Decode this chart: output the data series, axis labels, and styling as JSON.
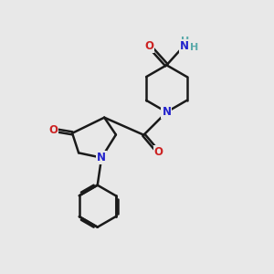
{
  "bg_color": "#e8e8e8",
  "bond_color": "#1a1a1a",
  "N_color": "#2222cc",
  "O_color": "#cc2222",
  "H_color": "#5aaaaa",
  "line_width": 1.8,
  "font_size_atom": 8.5,
  "fig_size": [
    3.0,
    3.0
  ],
  "dpi": 100,
  "xlim": [
    0,
    10
  ],
  "ylim": [
    0,
    10
  ]
}
